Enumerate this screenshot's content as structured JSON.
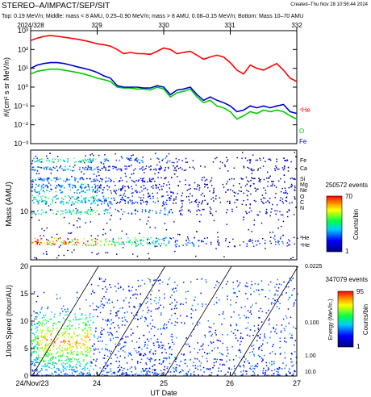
{
  "header": {
    "title": "STEREO–A/IMPACT/SEP/SIT",
    "created": "Created–Thu Nov 28 10:56:44 2024",
    "subtitle": "Top: 0.19 MeV/n; Middle: mass < 8 AMU, 0.25–0.90 MeV/n; mass > 8 AMU, 0.08–0.15 MeV/n; Bottom: Mass 10–70 AMU"
  },
  "colors": {
    "he": "#ff0000",
    "o": "#00cc00",
    "fe": "#0000cc"
  },
  "chart_data": [
    {
      "type": "line",
      "name": "top-flux",
      "top_axis_labels": [
        "2024/328",
        "329",
        "330",
        "331",
        "332"
      ],
      "top_axis_values": [
        328,
        329,
        330,
        331,
        332
      ],
      "ylabel": "#/(cm² s sr MeV/n)",
      "ylim_log10": [
        -3,
        3
      ],
      "ytick_labels": [
        "10⁻³",
        "10⁻²",
        "10⁻¹",
        "10⁰",
        "10¹",
        "10²",
        "10³"
      ],
      "y_scale": "log",
      "series": [
        {
          "name": "⁴He",
          "color": "#ff0000",
          "x": [
            328.0,
            328.1,
            328.2,
            328.3,
            328.4,
            328.5,
            328.6,
            328.7,
            328.8,
            328.9,
            329.0,
            329.1,
            329.2,
            329.3,
            329.4,
            329.5,
            329.6,
            329.7,
            329.8,
            329.9,
            330.0,
            330.1,
            330.2,
            330.3,
            330.4,
            330.5,
            330.6,
            330.7,
            330.8,
            330.9,
            331.0,
            331.1,
            331.2,
            331.3,
            331.4,
            331.5,
            331.6,
            331.7,
            331.8,
            331.9,
            332.0
          ],
          "y": [
            300,
            400,
            500,
            550,
            500,
            450,
            400,
            350,
            300,
            250,
            200,
            180,
            150,
            100,
            60,
            70,
            60,
            60,
            55,
            80,
            120,
            100,
            60,
            70,
            80,
            50,
            30,
            40,
            50,
            40,
            20,
            8,
            5,
            15,
            10,
            8,
            12,
            18,
            8,
            3,
            2
          ]
        },
        {
          "name": "O",
          "color": "#00cc00",
          "x": [
            328.0,
            328.1,
            328.2,
            328.3,
            328.4,
            328.5,
            328.6,
            328.7,
            328.8,
            328.9,
            329.0,
            329.1,
            329.2,
            329.3,
            329.4,
            329.5,
            329.6,
            329.7,
            329.8,
            329.9,
            330.0,
            330.1,
            330.2,
            330.3,
            330.4,
            330.5,
            330.6,
            330.7,
            330.8,
            330.9,
            331.0,
            331.1,
            331.2,
            331.3,
            331.4,
            331.5,
            331.6,
            331.7,
            331.8,
            331.9,
            332.0
          ],
          "y": [
            5,
            7,
            8,
            9,
            9,
            8,
            7,
            6,
            5,
            4,
            3,
            2.5,
            2,
            1,
            0.9,
            0.9,
            0.8,
            0.8,
            0.7,
            1.0,
            0.8,
            0.3,
            0.5,
            0.6,
            0.8,
            0.3,
            0.15,
            0.2,
            0.1,
            0.08,
            0.05,
            0.02,
            0.03,
            0.05,
            0.04,
            0.06,
            0.05,
            0.06,
            0.05,
            0.03,
            0.02
          ]
        },
        {
          "name": "Fe",
          "color": "#0000cc",
          "x": [
            328.0,
            328.1,
            328.2,
            328.3,
            328.4,
            328.5,
            328.6,
            328.7,
            328.8,
            328.9,
            329.0,
            329.1,
            329.2,
            329.3,
            329.4,
            329.5,
            329.6,
            329.7,
            329.8,
            329.9,
            330.0,
            330.1,
            330.2,
            330.3,
            330.4,
            330.5,
            330.6,
            330.7,
            330.8,
            330.9,
            331.0,
            331.1,
            331.2,
            331.3,
            331.4,
            331.5,
            331.6,
            331.7,
            331.8,
            331.9,
            332.0
          ],
          "y": [
            10,
            15,
            18,
            20,
            20,
            18,
            15,
            12,
            10,
            8,
            6,
            4,
            3,
            1.2,
            1.0,
            1.0,
            1.0,
            0.9,
            0.9,
            1.2,
            1.0,
            0.4,
            0.7,
            0.8,
            1.0,
            0.4,
            0.2,
            0.3,
            0.2,
            0.15,
            0.1,
            0.05,
            0.06,
            0.1,
            0.08,
            0.1,
            0.08,
            0.1,
            0.12,
            0.05,
            0.04
          ]
        }
      ]
    },
    {
      "type": "heatmap",
      "name": "mass-spectrogram",
      "ylabel": "Mass (AMU)",
      "y_scale": "log",
      "ytick_labels": [
        "10"
      ],
      "element_labels": [
        "Fe",
        "Ca",
        "Si",
        "Mg",
        "Ne",
        "O",
        "C",
        "N",
        "³He",
        "⁴He"
      ],
      "colorbar": {
        "events": "250572 events",
        "max": "70",
        "min": "1",
        "label": "Counts/bin"
      }
    },
    {
      "type": "heatmap",
      "name": "velocity-dispersion",
      "ylabel": "1/Ion Speed (hour/AU)",
      "xlabel": "UT Date",
      "ylim": [
        0,
        20
      ],
      "ytick_labels": [
        "0",
        "5",
        "10",
        "15",
        "20"
      ],
      "xtick_labels": [
        "24/Nov/23",
        "24",
        "25",
        "26",
        "27"
      ],
      "x_values": [
        23,
        24,
        25,
        26,
        27
      ],
      "right_axis_label": "Energy (MeV/n.)",
      "right_tick_labels": [
        "0.0225",
        "0.100",
        "1.00",
        "10.0"
      ],
      "colorbar": {
        "events": "347079 events",
        "max": "95",
        "min": "1",
        "label": "Counts/bin"
      }
    }
  ]
}
